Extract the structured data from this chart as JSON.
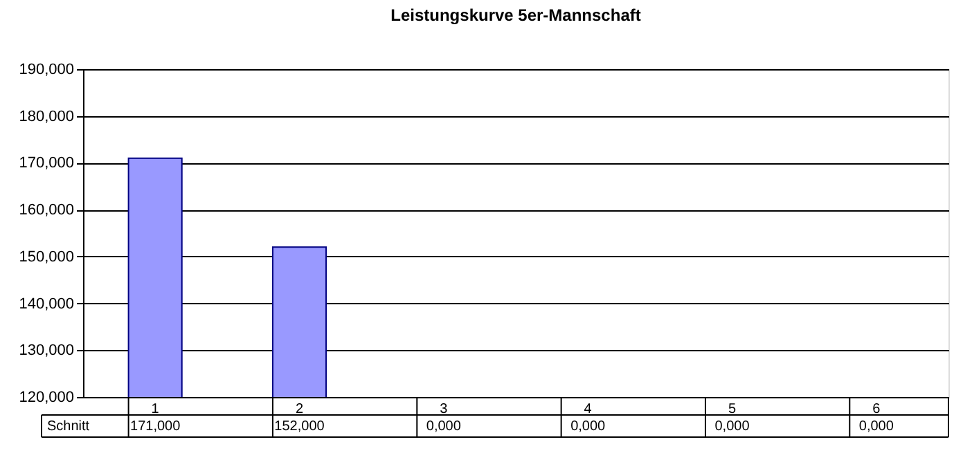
{
  "chart_data": {
    "type": "bar",
    "title": "Leistungskurve 5er-Mannschaft",
    "categories": [
      "1",
      "2",
      "3",
      "4",
      "5",
      "6"
    ],
    "series": [
      {
        "name": "Schnitt",
        "color": "#9999ff",
        "values": [
          171,
          152,
          null,
          null,
          null,
          null
        ],
        "value_labels": [
          "171,000",
          "152,000",
          "0,000",
          "0,000",
          "0,000",
          "0,000"
        ]
      }
    ],
    "ylim": [
      120,
      190
    ],
    "yticks": [
      {
        "value": 120,
        "label": "120,000"
      },
      {
        "value": 130,
        "label": "130,000"
      },
      {
        "value": 140,
        "label": "140,000"
      },
      {
        "value": 150,
        "label": "150,000"
      },
      {
        "value": 160,
        "label": "160,000"
      },
      {
        "value": 170,
        "label": "170,000"
      },
      {
        "value": 180,
        "label": "180,000"
      },
      {
        "value": 190,
        "label": "190,000"
      }
    ],
    "grid": "y"
  }
}
